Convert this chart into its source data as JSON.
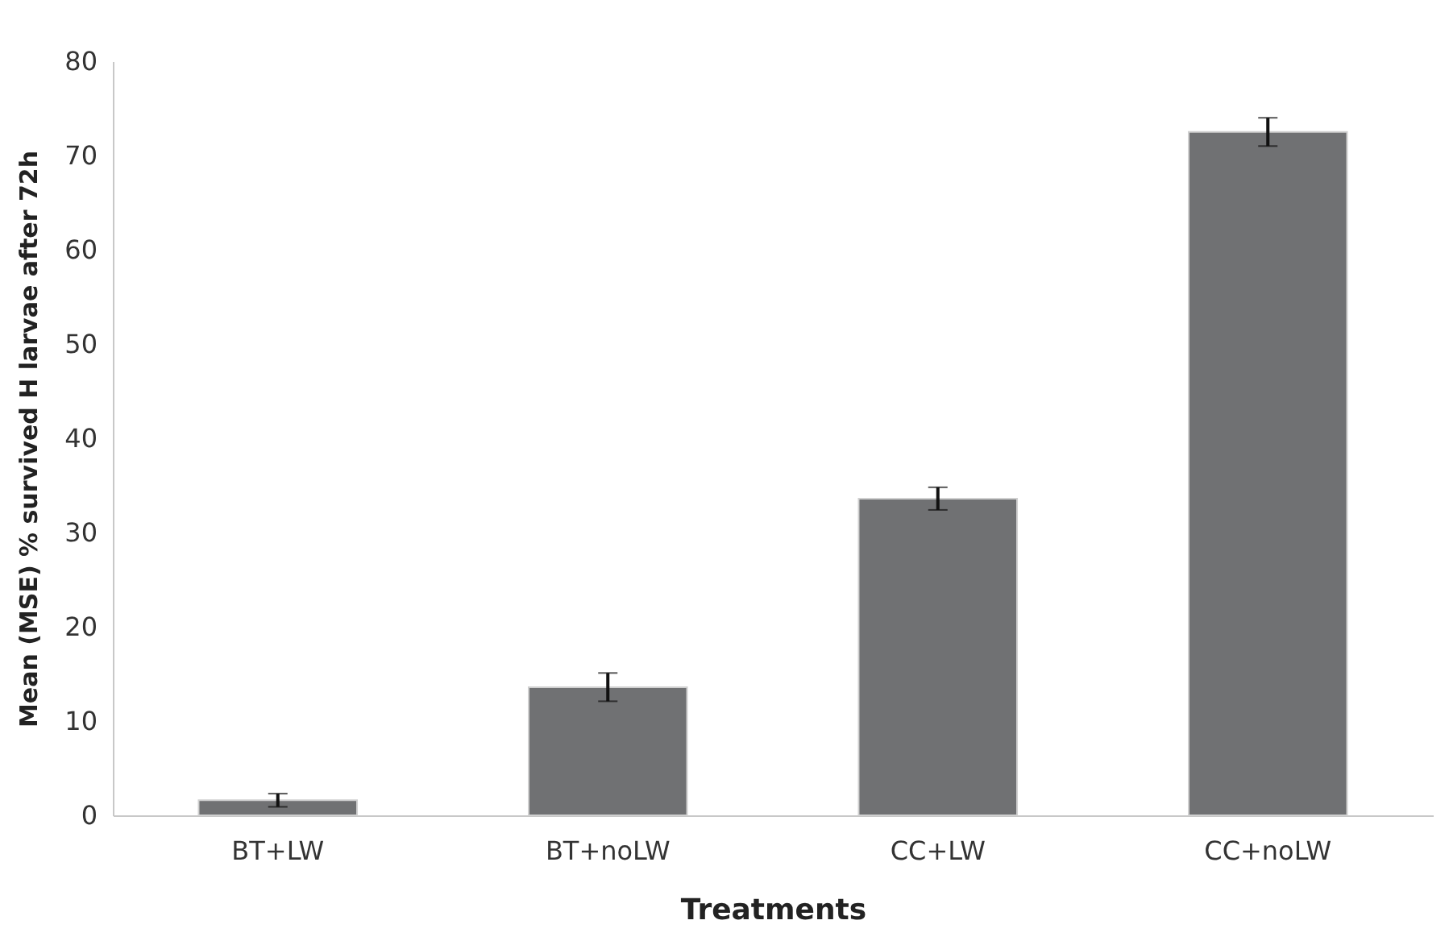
{
  "chart_data": {
    "type": "bar",
    "xlabel": "Treatments",
    "ylabel": "Mean (MSE) % survived H larvae after 72h",
    "categories": [
      "BT+LW",
      "BT+noLW",
      "CC+LW",
      "CC+noLW"
    ],
    "values": [
      1.6,
      13.6,
      33.6,
      72.5
    ],
    "errors": [
      0.7,
      1.5,
      1.2,
      1.5
    ],
    "color": "#707173",
    "ylim": [
      0,
      80
    ],
    "yticks": [
      0,
      10,
      20,
      30,
      40,
      50,
      60,
      70,
      80
    ],
    "grid": false
  }
}
